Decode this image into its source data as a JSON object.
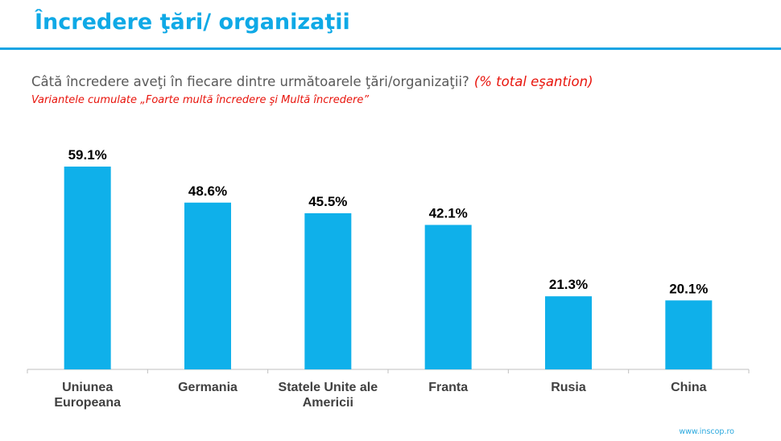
{
  "title": "Încredere ţări/ organizaţii",
  "question": "Câtă încredere aveţi în fiecare dintre următoarele ţări/organizaţii?",
  "question_note": "(% total eşantion)",
  "subnote": "Variantele cumulate „Foarte multă încredere şi Multă încredere”",
  "footer": "www.inscop.ro",
  "colors": {
    "bar": "#0fb0ea",
    "accent": "#1aa4e3",
    "note": "#e8140c",
    "axis": "#bfbfbf"
  },
  "chart_data": {
    "type": "bar",
    "title": "",
    "xlabel": "",
    "ylabel": "",
    "ylim": [
      0,
      60
    ],
    "grid": false,
    "legend": "none",
    "categories": [
      [
        "Uniunea",
        "Europeana"
      ],
      [
        "Germania"
      ],
      [
        "Statele Unite ale",
        "Americii"
      ],
      [
        "Franta"
      ],
      [
        "Rusia"
      ],
      [
        "China"
      ]
    ],
    "values": [
      59.1,
      48.6,
      45.5,
      42.1,
      21.3,
      20.1
    ],
    "value_labels": [
      "59.1%",
      "48.6%",
      "45.5%",
      "42.1%",
      "21.3%",
      "20.1%"
    ]
  }
}
